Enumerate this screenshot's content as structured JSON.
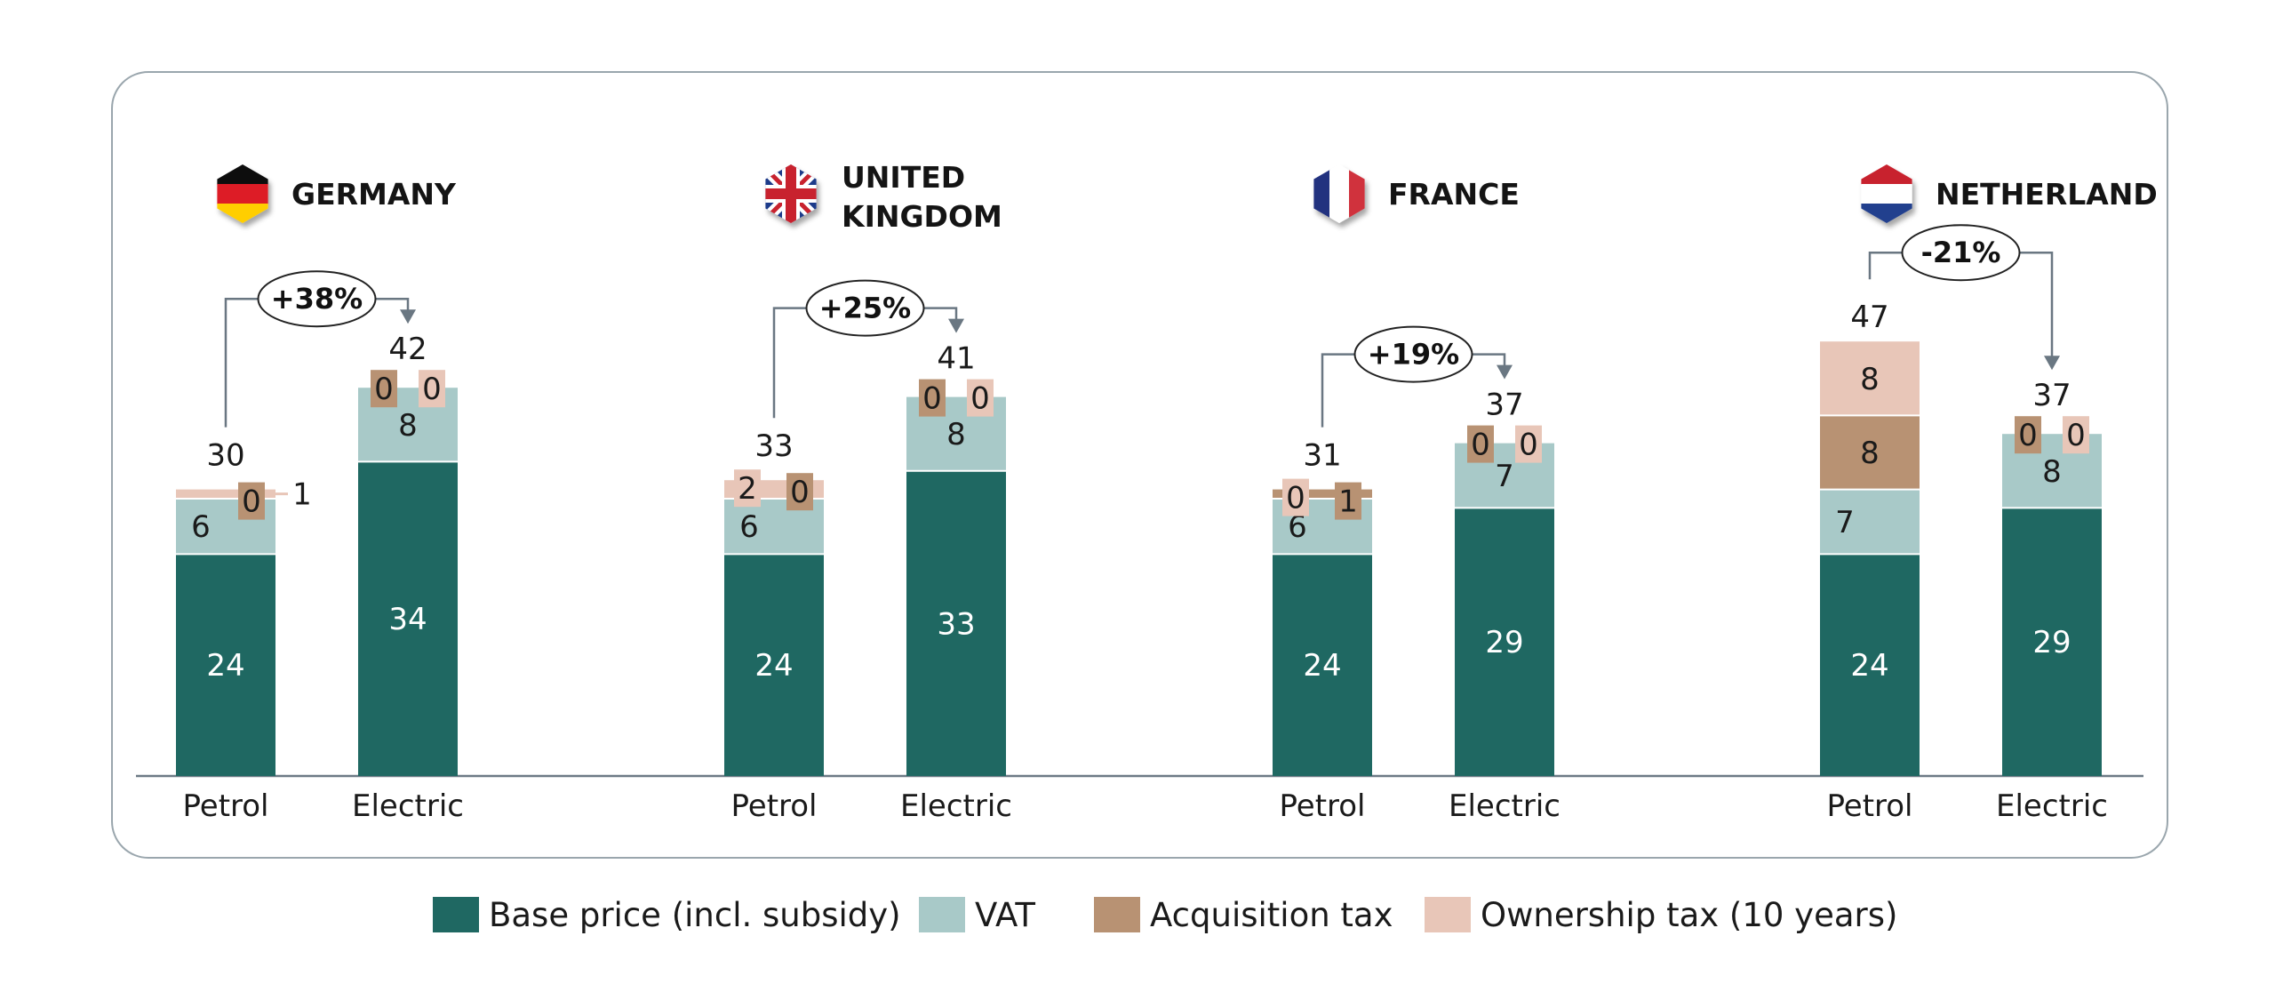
{
  "chart_data": {
    "type": "stacked-bar",
    "title": "",
    "xlabel": "",
    "ylabel": "",
    "categories": [
      "Petrol",
      "Electric"
    ],
    "legend": {
      "placement": "bottom",
      "entries": [
        {
          "key": "base",
          "name": "Base price (incl. subsidy)",
          "color": "#1f6862"
        },
        {
          "key": "vat",
          "name": "VAT",
          "color": "#a8c9c8"
        },
        {
          "key": "acq",
          "name": "Acquisition tax",
          "color": "#b89273"
        },
        {
          "key": "own",
          "name": "Ownership tax (10 years)",
          "color": "#e8c6b8"
        }
      ]
    },
    "countries": [
      {
        "name": "GERMANY",
        "flag": "germany-flag",
        "change": "+38%",
        "bars": [
          {
            "category": "Petrol",
            "total": 30,
            "base": 24,
            "vat": 6,
            "acq": 0,
            "own": 1
          },
          {
            "category": "Electric",
            "total": 42,
            "base": 34,
            "vat": 8,
            "acq": 0,
            "own": 0
          }
        ]
      },
      {
        "name": "UNITED KINGDOM",
        "name_lines": [
          "UNITED",
          "KINGDOM"
        ],
        "flag": "uk-flag",
        "change": "+25%",
        "bars": [
          {
            "category": "Petrol",
            "total": 33,
            "base": 24,
            "vat": 6,
            "acq": 0,
            "own": 2
          },
          {
            "category": "Electric",
            "total": 41,
            "base": 33,
            "vat": 8,
            "acq": 0,
            "own": 0
          }
        ]
      },
      {
        "name": "FRANCE",
        "flag": "france-flag",
        "change": "+19%",
        "bars": [
          {
            "category": "Petrol",
            "total": 31,
            "base": 24,
            "vat": 6,
            "acq": 1,
            "own": 0
          },
          {
            "category": "Electric",
            "total": 37,
            "base": 29,
            "vat": 7,
            "acq": 0,
            "own": 0
          }
        ]
      },
      {
        "name": "NETHERLAND",
        "flag": "netherlands-flag",
        "change": "-21%",
        "bars": [
          {
            "category": "Petrol",
            "total": 47,
            "base": 24,
            "vat": 7,
            "acq": 8,
            "own": 8
          },
          {
            "category": "Electric",
            "total": 37,
            "base": 29,
            "vat": 8,
            "acq": 0,
            "own": 0
          }
        ]
      }
    ]
  }
}
